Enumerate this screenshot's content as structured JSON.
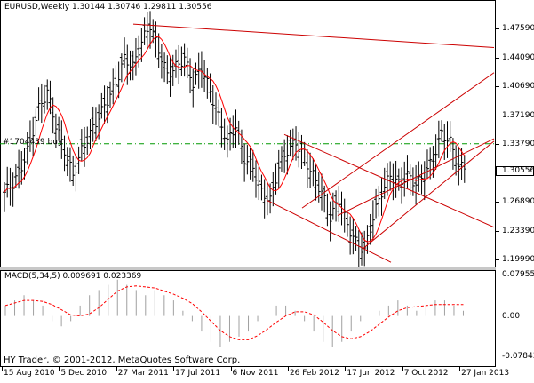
{
  "chart": {
    "symbol_timeframe": "EURUSD,Weekly",
    "ohlc": "1.30144 1.30746 1.29811 1.30556",
    "hline_label": "#1704439 buy",
    "current_price": "1.30556",
    "price_labels": [
      "1.47590",
      "1.44090",
      "1.40690",
      "1.37190",
      "1.33790",
      "1.30556",
      "1.26890",
      "1.23390",
      "1.19990"
    ],
    "price_ticks": [
      1.4759,
      1.4409,
      1.4069,
      1.3719,
      1.3379,
      1.30556,
      1.2689,
      1.2339,
      1.1999
    ],
    "time_labels": [
      "15 Aug 2010",
      "5 Dec 2010",
      "27 Mar 2011",
      "17 Jul 2011",
      "6 Nov 2011",
      "26 Feb 2012",
      "17 Jun 2012",
      "7 Oct 2012",
      "27 Jan 2013"
    ],
    "price_range": [
      1.192,
      1.495
    ]
  },
  "macd": {
    "title": "MACD(5,34,5) 0.009691 0.023369",
    "labels": [
      "0.079558",
      "0.00",
      "-0.07843"
    ],
    "ticks": [
      0.079558,
      0.0,
      -0.07843
    ],
    "range": [
      -0.095,
      0.085
    ]
  },
  "footer": {
    "copyright": "HY Trader, © 2001-2012, MetaQuotes Software Corp."
  },
  "colors": {
    "bars": "#000000",
    "ma": "#ff0000",
    "trendlines": "#cc0000",
    "hline": "#009900",
    "macd_hist": "#a0a0a0",
    "macd_signal": "#ff0000"
  },
  "chart_data": {
    "type": "candlestick",
    "x": [
      "15 Aug 2010",
      "5 Dec 2010",
      "27 Mar 2011",
      "17 Jul 2011",
      "6 Nov 2011",
      "26 Feb 2012",
      "17 Jun 2012",
      "7 Oct 2012",
      "27 Jan 2013"
    ],
    "close_path": [
      1.28,
      1.29,
      1.31,
      1.34,
      1.38,
      1.4,
      1.36,
      1.33,
      1.3,
      1.33,
      1.35,
      1.37,
      1.39,
      1.41,
      1.44,
      1.43,
      1.46,
      1.48,
      1.45,
      1.42,
      1.43,
      1.44,
      1.41,
      1.43,
      1.4,
      1.37,
      1.34,
      1.36,
      1.32,
      1.31,
      1.28,
      1.27,
      1.31,
      1.33,
      1.34,
      1.32,
      1.3,
      1.28,
      1.25,
      1.27,
      1.24,
      1.22,
      1.21,
      1.25,
      1.28,
      1.3,
      1.29,
      1.3,
      1.29,
      1.3,
      1.32,
      1.35,
      1.34,
      1.31
    ],
    "macd_hist": [
      0.02,
      0.03,
      0.04,
      0.03,
      0.02,
      -0.01,
      -0.02,
      -0.01,
      0.02,
      0.04,
      0.05,
      0.06,
      0.07,
      0.06,
      0.05,
      0.04,
      0.05,
      0.04,
      0.03,
      0.01,
      -0.01,
      -0.03,
      -0.05,
      -0.06,
      -0.05,
      -0.04,
      -0.03,
      -0.01,
      0.0,
      0.02,
      0.02,
      0.01,
      -0.01,
      -0.03,
      -0.05,
      -0.06,
      -0.05,
      -0.03,
      -0.01,
      0.0,
      0.01,
      0.02,
      0.03,
      0.02,
      0.01,
      0.02,
      0.03,
      0.03,
      0.02,
      0.01
    ],
    "ylim": [
      1.192,
      1.495
    ]
  }
}
